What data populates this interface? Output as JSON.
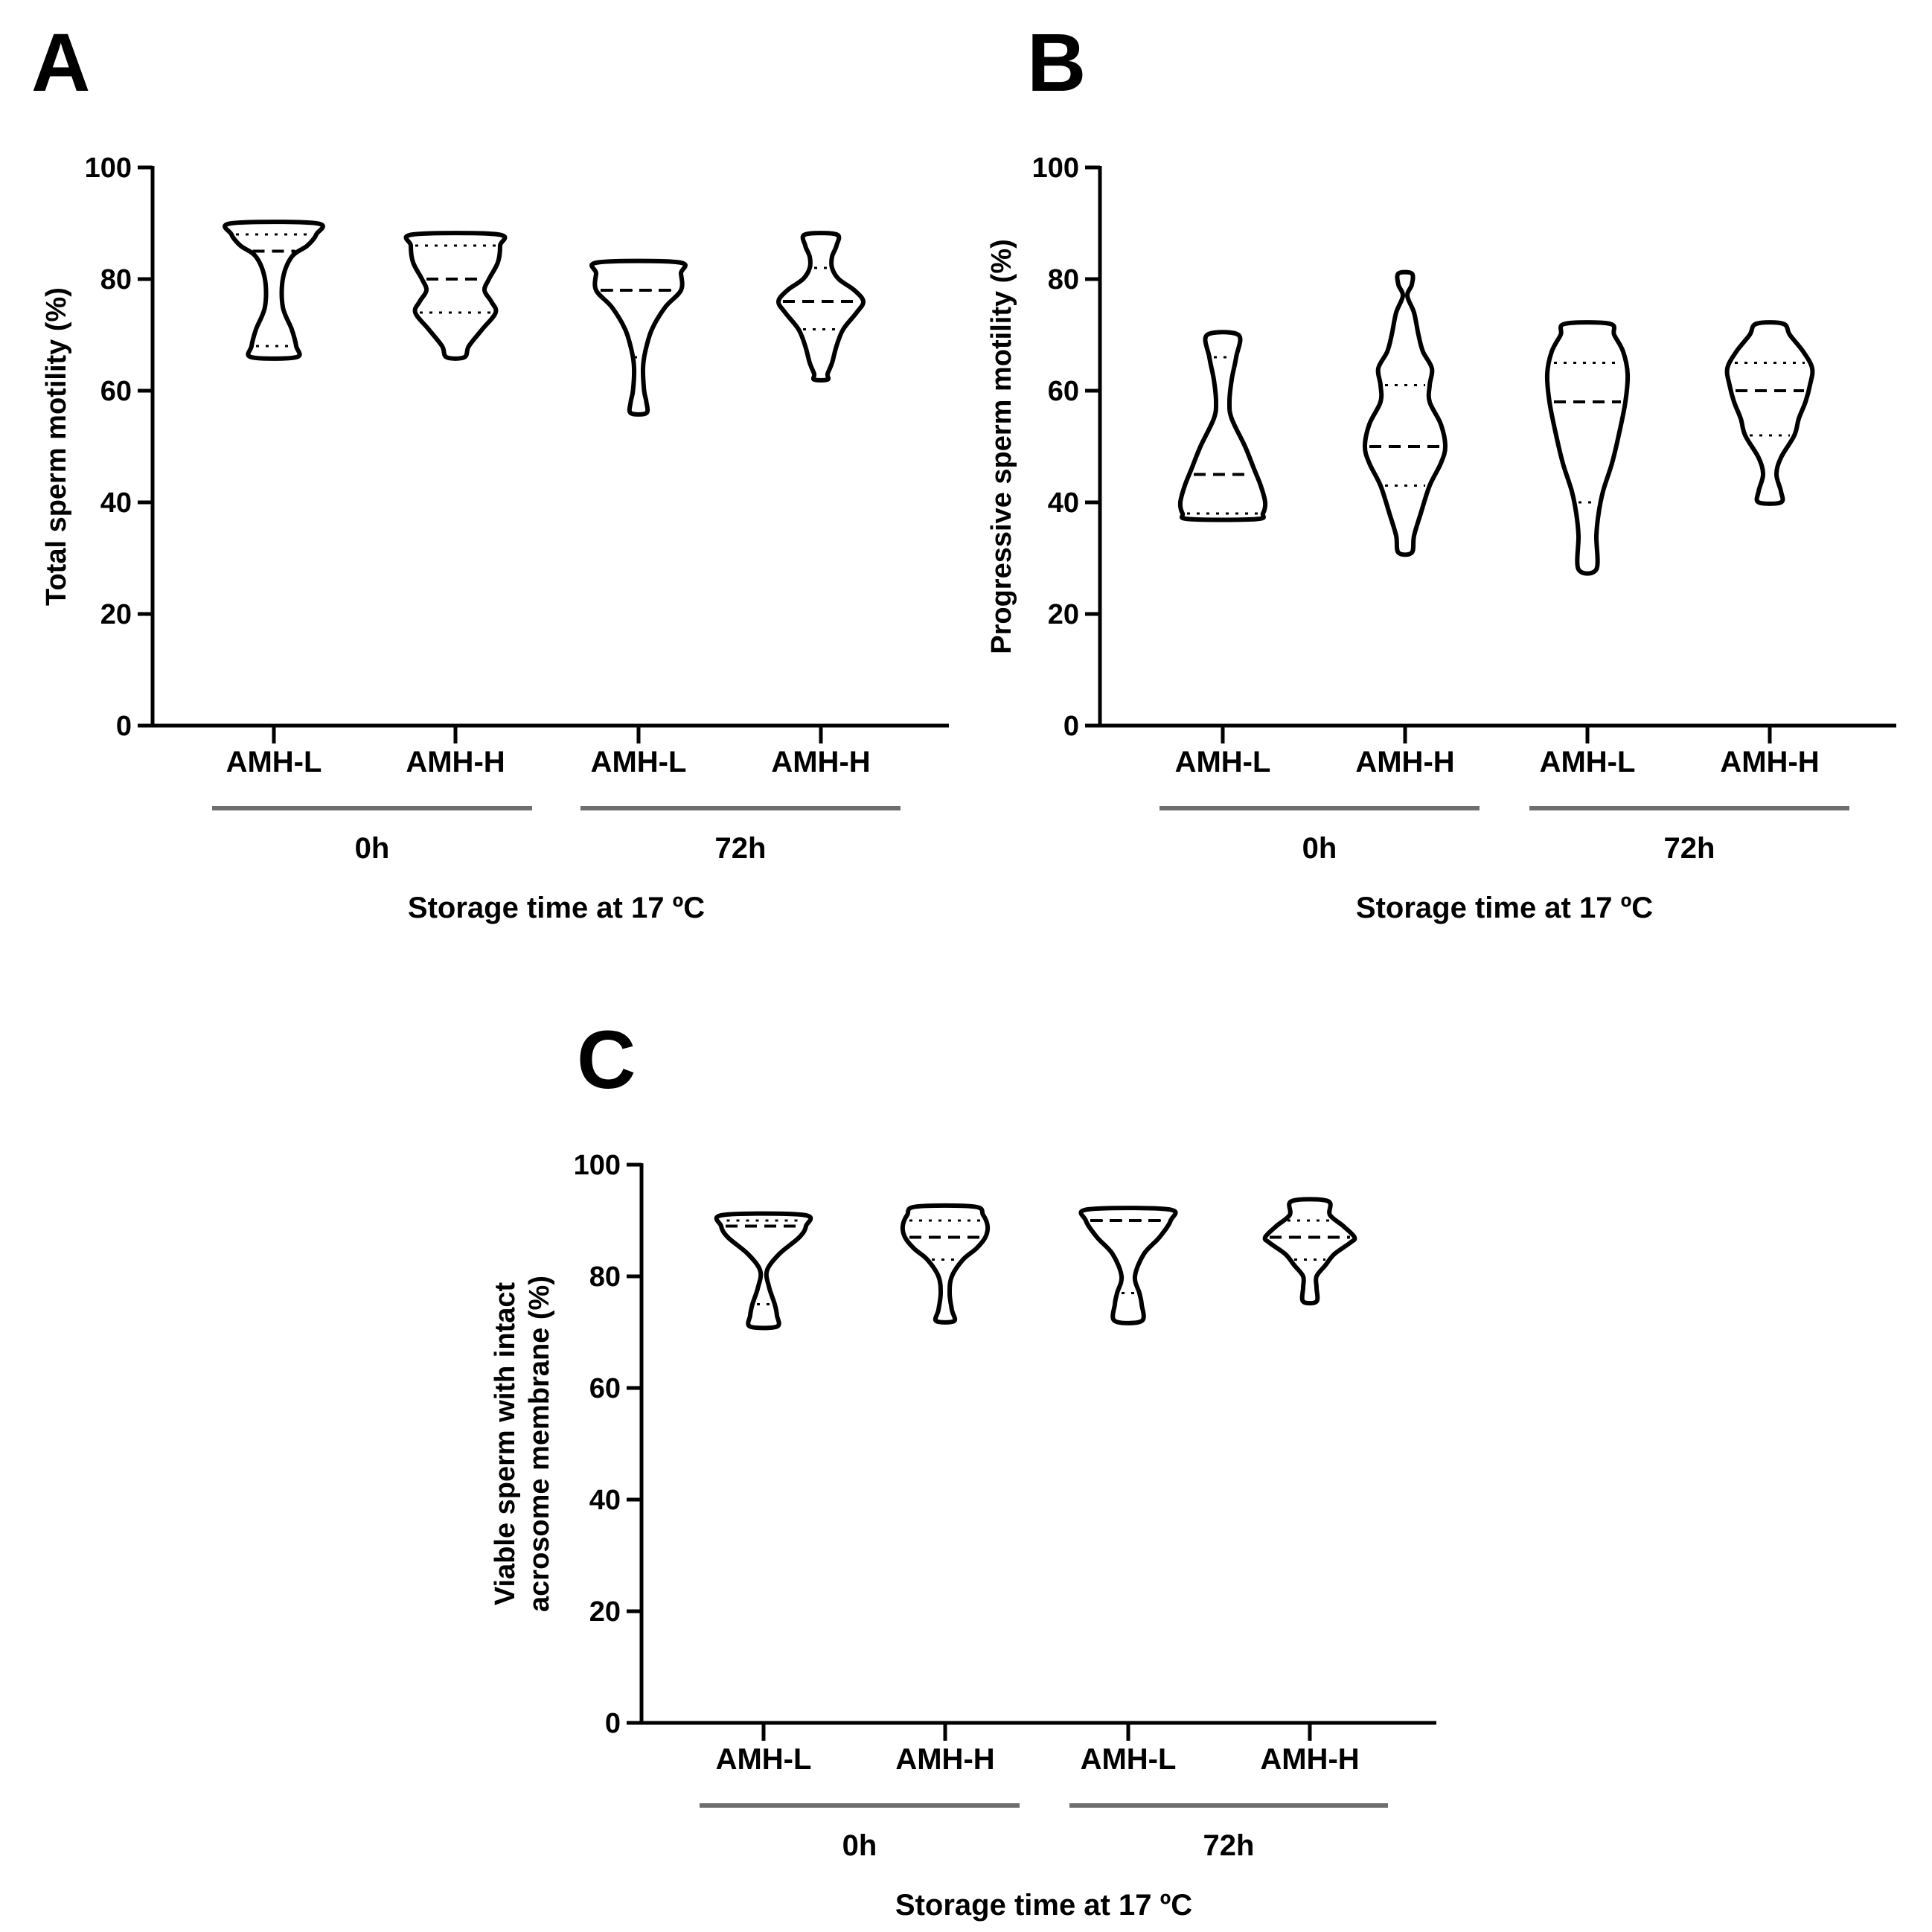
{
  "colors": {
    "axis": "#000000",
    "group_bar": "#6e6e6e",
    "background": "#ffffff"
  },
  "chart_data": [
    {
      "panel": "A",
      "type": "violin",
      "ylabel": [
        "Total sperm motility (%)"
      ],
      "xlabel": "Storage time at 17 ºC",
      "ylim": [
        0,
        100
      ],
      "yticks": [
        0,
        20,
        40,
        60,
        80,
        100
      ],
      "categories": [
        "AMH-L",
        "AMH-H",
        "AMH-L",
        "AMH-H"
      ],
      "groups": [
        {
          "label": "0h",
          "categories": [
            0,
            1
          ]
        },
        {
          "label": "72h",
          "categories": [
            2,
            3
          ]
        }
      ],
      "violins": [
        {
          "category": "AMH-L",
          "group": "0h",
          "min": 66,
          "max": 90,
          "median": 85,
          "q1": 68,
          "q3": 88,
          "profile": [
            [
              66,
              0.2
            ],
            [
              68,
              0.2
            ],
            [
              71,
              0.16
            ],
            [
              75,
              0.08
            ],
            [
              80,
              0.08
            ],
            [
              84,
              0.16
            ],
            [
              86,
              0.3
            ],
            [
              88,
              0.38
            ],
            [
              90,
              0.38
            ]
          ]
        },
        {
          "category": "AMH-H",
          "group": "0h",
          "min": 66,
          "max": 88,
          "median": 80,
          "q1": 74,
          "q3": 86,
          "profile": [
            [
              66,
              0.08
            ],
            [
              68,
              0.12
            ],
            [
              71,
              0.24
            ],
            [
              74,
              0.36
            ],
            [
              76,
              0.32
            ],
            [
              78,
              0.26
            ],
            [
              80,
              0.3
            ],
            [
              83,
              0.38
            ],
            [
              86,
              0.4
            ],
            [
              88,
              0.38
            ]
          ]
        },
        {
          "category": "AMH-L",
          "group": "72h",
          "min": 56,
          "max": 83,
          "median": 78,
          "q1": 66,
          "q3": 78,
          "profile": [
            [
              56,
              0.07
            ],
            [
              58,
              0.07
            ],
            [
              60,
              0.05
            ],
            [
              64,
              0.04
            ],
            [
              67,
              0.06
            ],
            [
              71,
              0.12
            ],
            [
              75,
              0.24
            ],
            [
              78,
              0.38
            ],
            [
              81,
              0.38
            ],
            [
              83,
              0.36
            ]
          ]
        },
        {
          "category": "AMH-H",
          "group": "72h",
          "min": 62,
          "max": 88,
          "median": 76,
          "q1": 71,
          "q3": 82,
          "profile": [
            [
              62,
              0.06
            ],
            [
              63,
              0.06
            ],
            [
              65,
              0.1
            ],
            [
              68,
              0.14
            ],
            [
              71,
              0.2
            ],
            [
              74,
              0.32
            ],
            [
              76,
              0.38
            ],
            [
              78,
              0.3
            ],
            [
              80,
              0.16
            ],
            [
              82,
              0.1
            ],
            [
              84,
              0.1
            ],
            [
              86,
              0.14
            ],
            [
              88,
              0.14
            ]
          ]
        }
      ]
    },
    {
      "panel": "B",
      "type": "violin",
      "ylabel": [
        "Progressive sperm motility (%)"
      ],
      "xlabel": "Storage time at 17 ºC",
      "ylim": [
        0,
        100
      ],
      "yticks": [
        0,
        20,
        40,
        60,
        80,
        100
      ],
      "categories": [
        "AMH-L",
        "AMH-H",
        "AMH-L",
        "AMH-H"
      ],
      "groups": [
        {
          "label": "0h",
          "categories": [
            0,
            1
          ]
        },
        {
          "label": "72h",
          "categories": [
            2,
            3
          ]
        }
      ],
      "violins": [
        {
          "category": "AMH-L",
          "group": "0h",
          "min": 37,
          "max": 70,
          "median": 45,
          "q1": 38,
          "q3": 66,
          "profile": [
            [
              37,
              0.3
            ],
            [
              38,
              0.36
            ],
            [
              40,
              0.38
            ],
            [
              43,
              0.34
            ],
            [
              46,
              0.28
            ],
            [
              50,
              0.2
            ],
            [
              55,
              0.08
            ],
            [
              58,
              0.06
            ],
            [
              62,
              0.08
            ],
            [
              66,
              0.12
            ],
            [
              70,
              0.14
            ]
          ]
        },
        {
          "category": "AMH-H",
          "group": "0h",
          "min": 31,
          "max": 81,
          "median": 50,
          "q1": 43,
          "q3": 61,
          "profile": [
            [
              31,
              0.06
            ],
            [
              34,
              0.08
            ],
            [
              38,
              0.14
            ],
            [
              43,
              0.22
            ],
            [
              47,
              0.32
            ],
            [
              50,
              0.36
            ],
            [
              54,
              0.32
            ],
            [
              58,
              0.22
            ],
            [
              61,
              0.22
            ],
            [
              64,
              0.24
            ],
            [
              67,
              0.16
            ],
            [
              70,
              0.12
            ],
            [
              74,
              0.08
            ],
            [
              77,
              0.02
            ],
            [
              79,
              0.06
            ],
            [
              81,
              0.06
            ]
          ]
        },
        {
          "category": "AMH-L",
          "group": "72h",
          "min": 28,
          "max": 72,
          "median": 58,
          "q1": 40,
          "q3": 65,
          "profile": [
            [
              28,
              0.08
            ],
            [
              34,
              0.08
            ],
            [
              38,
              0.1
            ],
            [
              42,
              0.14
            ],
            [
              47,
              0.22
            ],
            [
              52,
              0.28
            ],
            [
              58,
              0.34
            ],
            [
              63,
              0.36
            ],
            [
              67,
              0.32
            ],
            [
              70,
              0.24
            ],
            [
              72,
              0.2
            ]
          ]
        },
        {
          "category": "AMH-H",
          "group": "72h",
          "min": 40,
          "max": 72,
          "median": 60,
          "q1": 52,
          "q3": 65,
          "profile": [
            [
              40,
              0.1
            ],
            [
              42,
              0.1
            ],
            [
              45,
              0.06
            ],
            [
              48,
              0.1
            ],
            [
              52,
              0.22
            ],
            [
              55,
              0.26
            ],
            [
              58,
              0.32
            ],
            [
              61,
              0.36
            ],
            [
              64,
              0.38
            ],
            [
              67,
              0.3
            ],
            [
              70,
              0.18
            ],
            [
              72,
              0.12
            ]
          ]
        }
      ]
    },
    {
      "panel": "C",
      "type": "violin",
      "ylabel": [
        "Viable sperm with intact",
        "acrosome membrane (%)"
      ],
      "xlabel": "Storage time at 17 ºC",
      "ylim": [
        0,
        100
      ],
      "yticks": [
        0,
        20,
        40,
        60,
        80,
        100
      ],
      "categories": [
        "AMH-L",
        "AMH-H",
        "AMH-L",
        "AMH-H"
      ],
      "groups": [
        {
          "label": "0h",
          "categories": [
            0,
            1
          ]
        },
        {
          "label": "72h",
          "categories": [
            2,
            3
          ]
        }
      ],
      "violins": [
        {
          "category": "AMH-L",
          "group": "0h",
          "min": 71,
          "max": 91,
          "median": 89,
          "q1": 75,
          "q3": 90,
          "profile": [
            [
              71,
              0.12
            ],
            [
              73,
              0.12
            ],
            [
              75,
              0.1
            ],
            [
              78,
              0.05
            ],
            [
              81,
              0.03
            ],
            [
              84,
              0.14
            ],
            [
              87,
              0.32
            ],
            [
              89,
              0.38
            ],
            [
              91,
              0.36
            ]
          ]
        },
        {
          "category": "AMH-H",
          "group": "0h",
          "min": 72,
          "max": 92.5,
          "median": 87,
          "q1": 83,
          "q3": 90,
          "profile": [
            [
              72,
              0.08
            ],
            [
              74,
              0.06
            ],
            [
              77,
              0.04
            ],
            [
              80,
              0.06
            ],
            [
              83,
              0.16
            ],
            [
              85,
              0.28
            ],
            [
              87,
              0.36
            ],
            [
              89,
              0.38
            ],
            [
              91,
              0.34
            ],
            [
              92.5,
              0.26
            ]
          ]
        },
        {
          "category": "AMH-L",
          "group": "72h",
          "min": 72,
          "max": 92,
          "median": 90,
          "q1": 77,
          "q3": 90,
          "profile": [
            [
              72,
              0.12
            ],
            [
              75,
              0.12
            ],
            [
              77,
              0.1
            ],
            [
              80,
              0.06
            ],
            [
              84,
              0.14
            ],
            [
              87,
              0.28
            ],
            [
              90,
              0.38
            ],
            [
              92,
              0.36
            ]
          ]
        },
        {
          "category": "AMH-H",
          "group": "72h",
          "min": 75.5,
          "max": 93.5,
          "median": 87,
          "q1": 83,
          "q3": 90,
          "profile": [
            [
              75.5,
              0.06
            ],
            [
              78,
              0.06
            ],
            [
              80,
              0.06
            ],
            [
              82,
              0.14
            ],
            [
              84,
              0.22
            ],
            [
              86,
              0.36
            ],
            [
              87,
              0.4
            ],
            [
              89,
              0.3
            ],
            [
              91,
              0.18
            ],
            [
              93.5,
              0.16
            ]
          ]
        }
      ]
    }
  ]
}
